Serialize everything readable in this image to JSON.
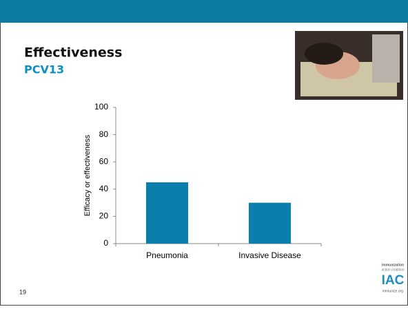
{
  "slide": {
    "title": "Effectiveness",
    "subtitle": "PCV13",
    "page_number": "19",
    "logo": {
      "line1": "immunization",
      "line2": "action coalition",
      "mark": "IAC",
      "url": "immunize.org"
    }
  },
  "chart_data": {
    "type": "bar",
    "y_label": "Efficacy or effectiveness",
    "categories": [
      "Pneumonia",
      "Invasive Disease"
    ],
    "values": [
      45,
      30
    ],
    "color": "#0b7eab",
    "ylim": [
      0,
      100
    ],
    "yticks": [
      0,
      20,
      40,
      60,
      80,
      100
    ],
    "grid": false
  }
}
